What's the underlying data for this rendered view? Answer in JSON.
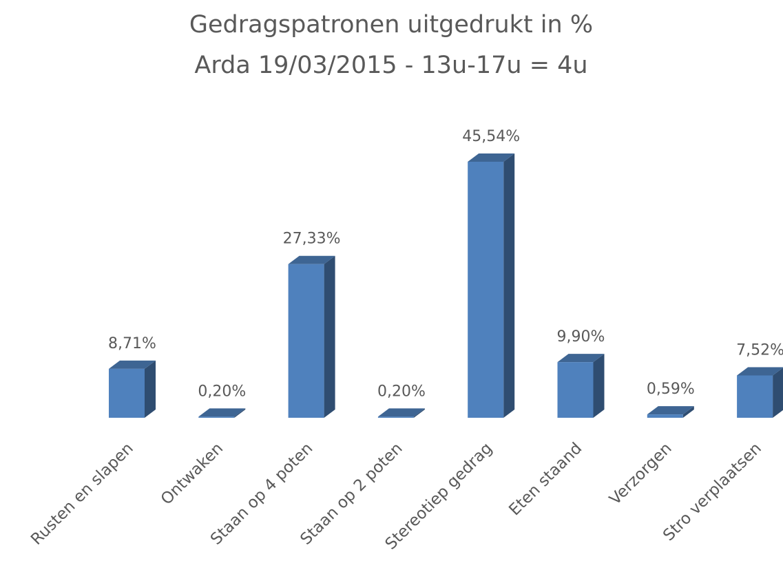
{
  "chart_data": {
    "type": "bar3d",
    "title": "Gedragspatronen uitgedrukt in %",
    "subtitle": "Arda 19/03/2015 - 13u-17u = 4u",
    "categories": [
      "Rusten en slapen",
      "Ontwaken",
      "Staan op 4 poten",
      "Staan op 2 poten",
      "Stereotiep gedrag",
      "Eten staand",
      "Verzorgen",
      "Stro verplaatsen"
    ],
    "values": [
      8.71,
      0.2,
      27.33,
      0.2,
      45.54,
      9.9,
      0.59,
      7.52
    ],
    "value_labels": [
      "8,71%",
      "0,20%",
      "27,33%",
      "0,20%",
      "45,54%",
      "9,90%",
      "0,59%",
      "7,52%"
    ],
    "color": "#4f81bd"
  }
}
